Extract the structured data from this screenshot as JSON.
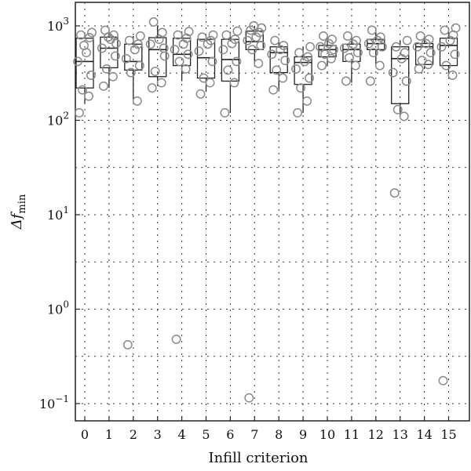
{
  "chart_data": {
    "type": "box",
    "xlabel": "Infill criterion",
    "ylabel": "Δf",
    "ylabel_subscript": "min",
    "y_scale": "log",
    "ylim": [
      0.07,
      1500
    ],
    "grid": "dotted",
    "categories": [
      "0",
      "1",
      "2",
      "3",
      "4",
      "5",
      "6",
      "7",
      "8",
      "9",
      "10",
      "11",
      "12",
      "13",
      "14",
      "15"
    ],
    "y_ticks": [
      {
        "value": 0.1,
        "base": "10",
        "exp": "−1"
      },
      {
        "value": 1,
        "base": "10",
        "exp": "0"
      },
      {
        "value": 10,
        "base": "10",
        "exp": "1"
      },
      {
        "value": 100,
        "base": "10",
        "exp": "2"
      },
      {
        "value": 1000,
        "base": "10",
        "exp": "3"
      }
    ],
    "y_minor_gridlines": [
      0.316,
      3.16,
      31.6,
      316
    ],
    "boxes": [
      {
        "q1": 220,
        "median": 420,
        "q3": 740,
        "whisker_low": 150,
        "whisker_high": 850
      },
      {
        "q1": 360,
        "median": 580,
        "q3": 760,
        "whisker_low": 220,
        "whisker_high": 900
      },
      {
        "q1": 340,
        "median": 420,
        "q3": 640,
        "whisker_low": 160,
        "whisker_high": 780
      },
      {
        "q1": 290,
        "median": 560,
        "q3": 750,
        "whisker_low": 230,
        "whisker_high": 1000
      },
      {
        "q1": 380,
        "median": 500,
        "q3": 740,
        "whisker_low": 260,
        "whisker_high": 870
      },
      {
        "q1": 280,
        "median": 460,
        "q3": 720,
        "whisker_low": 200,
        "whisker_high": 800
      },
      {
        "q1": 260,
        "median": 440,
        "q3": 720,
        "whisker_low": 120,
        "whisker_high": 860
      },
      {
        "q1": 560,
        "median": 680,
        "q3": 880,
        "whisker_low": 400,
        "whisker_high": 1000
      },
      {
        "q1": 320,
        "median": 520,
        "q3": 600,
        "whisker_low": 210,
        "whisker_high": 720
      },
      {
        "q1": 240,
        "median": 410,
        "q3": 470,
        "whisker_low": 120,
        "whisker_high": 600
      },
      {
        "q1": 470,
        "median": 560,
        "q3": 620,
        "whisker_low": 380,
        "whisker_high": 780
      },
      {
        "q1": 420,
        "median": 560,
        "q3": 640,
        "whisker_low": 250,
        "whisker_high": 780
      },
      {
        "q1": 560,
        "median": 650,
        "q3": 720,
        "whisker_low": 380,
        "whisker_high": 920
      },
      {
        "q1": 150,
        "median": 450,
        "q3": 600,
        "whisker_low": 110,
        "whisker_high": 700
      },
      {
        "q1": 390,
        "median": 600,
        "q3": 650,
        "whisker_low": 350,
        "whisker_high": 780
      },
      {
        "q1": 380,
        "median": 620,
        "q3": 740,
        "whisker_low": 300,
        "whisker_high": 950
      }
    ],
    "points": [
      {
        "x": 0,
        "values": [
          120,
          180,
          210,
          300,
          420,
          520,
          750,
          800,
          850,
          620
        ]
      },
      {
        "x": 1,
        "values": [
          230,
          290,
          350,
          480,
          580,
          720,
          800,
          900,
          650,
          760
        ]
      },
      {
        "x": 2,
        "values": [
          0.42,
          160,
          320,
          380,
          450,
          560,
          640,
          700,
          780
        ]
      },
      {
        "x": 3,
        "values": [
          220,
          250,
          330,
          580,
          640,
          720,
          850,
          1100,
          480
        ]
      },
      {
        "x": 4,
        "values": [
          0.48,
          350,
          420,
          500,
          560,
          640,
          740,
          800,
          870
        ]
      },
      {
        "x": 5,
        "values": [
          190,
          250,
          280,
          420,
          540,
          640,
          700,
          760,
          800
        ]
      },
      {
        "x": 6,
        "values": [
          120,
          250,
          340,
          420,
          560,
          650,
          720,
          800,
          880
        ]
      },
      {
        "x": 7,
        "values": [
          0.115,
          400,
          560,
          620,
          700,
          760,
          850,
          900,
          950,
          1000
        ]
      },
      {
        "x": 8,
        "values": [
          210,
          280,
          340,
          430,
          500,
          560,
          620,
          700
        ]
      },
      {
        "x": 9,
        "values": [
          120,
          160,
          220,
          280,
          350,
          420,
          470,
          520,
          600
        ]
      },
      {
        "x": 10,
        "values": [
          380,
          450,
          500,
          560,
          600,
          650,
          720,
          780
        ]
      },
      {
        "x": 11,
        "values": [
          260,
          380,
          460,
          520,
          580,
          640,
          700,
          780
        ]
      },
      {
        "x": 12,
        "values": [
          260,
          380,
          520,
          600,
          650,
          700,
          760,
          900
        ]
      },
      {
        "x": 13,
        "values": [
          17,
          110,
          130,
          260,
          320,
          450,
          520,
          600,
          700
        ]
      },
      {
        "x": 14,
        "values": [
          350,
          390,
          430,
          520,
          600,
          650,
          720,
          780
        ]
      },
      {
        "x": 15,
        "values": [
          0.175,
          300,
          380,
          500,
          600,
          700,
          800,
          900,
          950
        ]
      }
    ]
  }
}
